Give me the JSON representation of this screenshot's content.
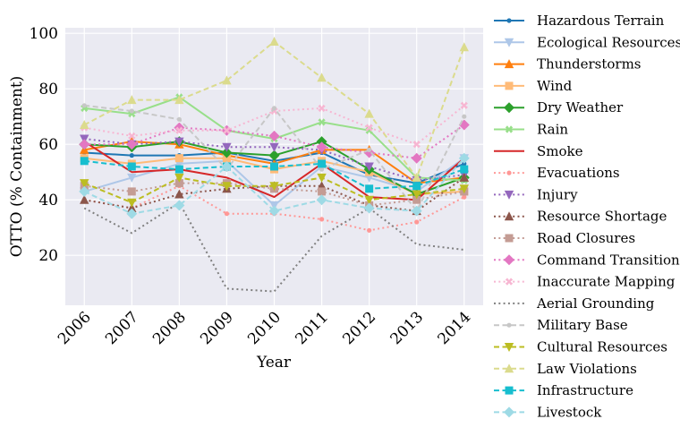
{
  "chart_data": {
    "type": "line",
    "title": "",
    "xlabel": "Year",
    "ylabel": "OTTO (% Containment)",
    "x": [
      2006,
      2007,
      2008,
      2009,
      2010,
      2011,
      2012,
      2013,
      2014
    ],
    "xlim": [
      2005.6,
      2014.4
    ],
    "ylim": [
      2,
      102
    ],
    "yticks": [
      20,
      40,
      60,
      80,
      100
    ],
    "grid": true,
    "legend_position": "outside-right",
    "series": [
      {
        "name": "Hazardous Terrain",
        "color": "#1f77b4",
        "dash": "solid",
        "marker": "point",
        "values": [
          57,
          56,
          56,
          57,
          54,
          57,
          49,
          46,
          53
        ]
      },
      {
        "name": "Ecological Resources",
        "color": "#aec7e8",
        "dash": "solid",
        "marker": "triangle-down",
        "values": [
          43,
          48,
          53,
          54,
          38,
          52,
          48,
          43,
          55
        ]
      },
      {
        "name": "Thunderstorms",
        "color": "#ff7f0e",
        "dash": "solid",
        "marker": "triangle-up",
        "values": [
          58,
          61,
          60,
          56,
          53,
          58,
          58,
          46,
          48
        ]
      },
      {
        "name": "Wind",
        "color": "#ffbb78",
        "dash": "solid",
        "marker": "square",
        "values": [
          55,
          53,
          55,
          55,
          51,
          54,
          50,
          42,
          43
        ]
      },
      {
        "name": "Dry Weather",
        "color": "#2ca02c",
        "dash": "solid",
        "marker": "diamond",
        "values": [
          60,
          59,
          61,
          57,
          56,
          61,
          51,
          42,
          48
        ]
      },
      {
        "name": "Rain",
        "color": "#98df8a",
        "dash": "solid",
        "marker": "x",
        "values": [
          73,
          71,
          77,
          65,
          62,
          68,
          65,
          48,
          47
        ]
      },
      {
        "name": "Smoke",
        "color": "#d62728",
        "dash": "solid",
        "marker": "none",
        "values": [
          61,
          50,
          51,
          48,
          41,
          53,
          41,
          40,
          55
        ]
      },
      {
        "name": "Evacuations",
        "color": "#ff9896",
        "dash": "dotted",
        "marker": "point",
        "values": [
          40,
          37,
          45,
          35,
          35,
          33,
          29,
          32,
          41
        ]
      },
      {
        "name": "Injury",
        "color": "#9467bd",
        "dash": "dotted",
        "marker": "triangle-down",
        "values": [
          62,
          60,
          61,
          59,
          59,
          58,
          52,
          47,
          49
        ]
      },
      {
        "name": "Resource Shortage",
        "color": "#8c564b",
        "dash": "dotted",
        "marker": "triangle-up",
        "values": [
          40,
          37,
          42,
          44,
          45,
          45,
          38,
          36,
          48
        ]
      },
      {
        "name": "Road Closures",
        "color": "#c49c94",
        "dash": "dotted",
        "marker": "square",
        "values": [
          45,
          43,
          46,
          46,
          44,
          43,
          38,
          40,
          43
        ]
      },
      {
        "name": "Command Transition",
        "color": "#e377c2",
        "dash": "dotted",
        "marker": "diamond",
        "values": [
          60,
          60,
          66,
          65,
          63,
          59,
          57,
          55,
          67
        ]
      },
      {
        "name": "Inaccurate Mapping",
        "color": "#f7b6d2",
        "dash": "dotted",
        "marker": "x",
        "values": [
          66,
          63,
          65,
          65,
          72,
          73,
          66,
          60,
          74
        ]
      },
      {
        "name": "Aerial Grounding",
        "color": "#7f7f7f",
        "dash": "dotted",
        "marker": "none",
        "values": [
          37,
          28,
          39,
          8,
          7,
          27,
          37,
          24,
          22
        ]
      },
      {
        "name": "Military Base",
        "color": "#c7c7c7",
        "dash": "dashed",
        "marker": "point",
        "values": [
          74,
          72,
          69,
          51,
          73,
          51,
          58,
          36,
          70
        ]
      },
      {
        "name": "Cultural Resources",
        "color": "#bcbd22",
        "dash": "dashed",
        "marker": "triangle-down",
        "values": [
          46,
          39,
          48,
          45,
          45,
          48,
          40,
          42,
          44
        ]
      },
      {
        "name": "Law Violations",
        "color": "#dbdb8d",
        "dash": "dashed",
        "marker": "triangle-up",
        "values": [
          67,
          76,
          76,
          83,
          97,
          84,
          71,
          48,
          95
        ]
      },
      {
        "name": "Infrastructure",
        "color": "#17becf",
        "dash": "dashed",
        "marker": "square",
        "values": [
          54,
          52,
          51,
          52,
          52,
          53,
          44,
          45,
          51
        ]
      },
      {
        "name": "Livestock",
        "color": "#9edae5",
        "dash": "dashed",
        "marker": "diamond",
        "values": [
          43,
          35,
          38,
          52,
          36,
          40,
          37,
          36,
          55
        ]
      }
    ]
  }
}
